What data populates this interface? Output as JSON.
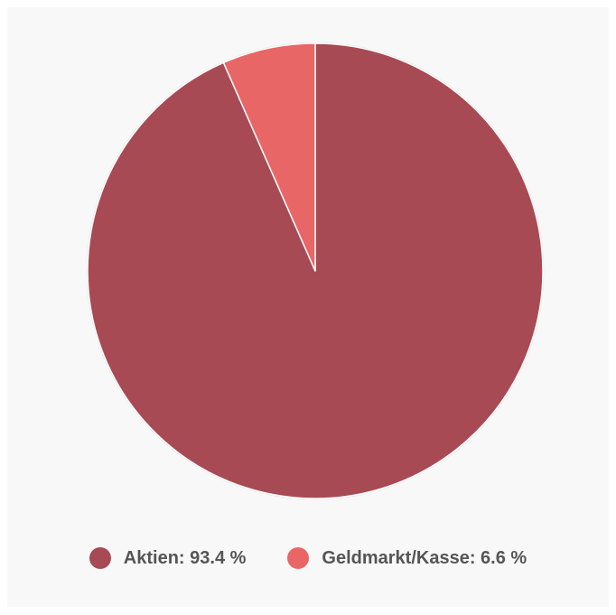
{
  "chart_data": {
    "type": "pie",
    "slices": [
      {
        "label": "Aktien",
        "value": 93.4,
        "display": "Aktien: 93.4 %",
        "color": "#a84a54"
      },
      {
        "label": "Geldmarkt/Kasse",
        "value": 6.6,
        "display": "Geldmarkt/Kasse: 6.6 %",
        "color": "#e96666"
      }
    ],
    "start_angle": "12 o'clock",
    "direction": "clockwise",
    "legend_position": "bottom"
  }
}
